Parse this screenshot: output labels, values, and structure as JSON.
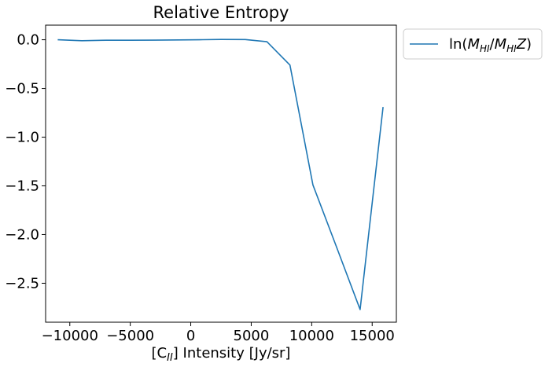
{
  "chart_data": {
    "type": "line",
    "title": "Relative Entropy",
    "xlabel": "[C",
    "xlabel_sub": "II",
    "xlabel_rest": "] Intensity [Jy/sr]",
    "ylabel": "",
    "xlim": [
      -12000,
      17000
    ],
    "ylim": [
      -2.9,
      0.15
    ],
    "xticks": [
      -10000,
      -5000,
      0,
      5000,
      10000,
      15000
    ],
    "xtick_labels": [
      "−10000",
      "−5000",
      "0",
      "5000",
      "10000",
      "15000"
    ],
    "yticks": [
      0.0,
      -0.5,
      -1.0,
      -1.5,
      -2.0,
      -2.5
    ],
    "ytick_labels": [
      "0.0",
      "−0.5",
      "−1.0",
      "−1.5",
      "−2.0",
      "−2.5"
    ],
    "grid": false,
    "legend_position": "outside-top-right",
    "series": [
      {
        "name_prefix": "ln(",
        "name_m1": "M",
        "name_sub1": "HI",
        "name_slash": "/",
        "name_m2": "M",
        "name_sub2": "HI",
        "name_z": "Z",
        "name_suffix": ")",
        "color": "#1f77b4",
        "x": [
          -11000,
          -9000,
          -7000,
          -5000,
          -3000,
          -1000,
          1000,
          2500,
          4500,
          6300,
          8200,
          10100,
          12000,
          14000,
          15900
        ],
        "y": [
          0.0,
          -0.01,
          -0.005,
          -0.005,
          -0.004,
          -0.002,
          0.001,
          0.003,
          0.002,
          -0.02,
          -0.26,
          -1.49,
          -2.11,
          -2.77,
          -0.69
        ]
      }
    ]
  }
}
